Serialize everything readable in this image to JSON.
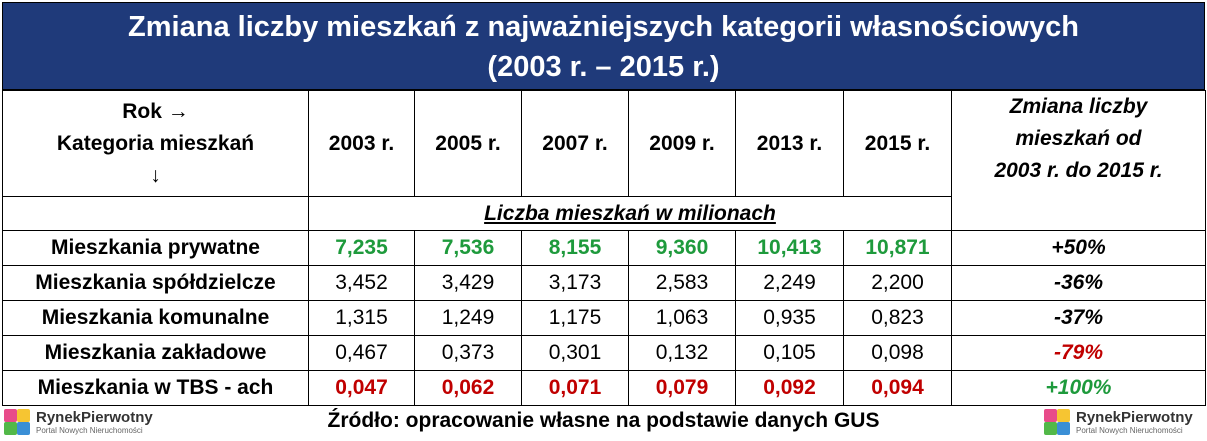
{
  "title": {
    "line1": "Zmiana liczby mieszkań z najważniejszych kategorii własnościowych",
    "line2": "(2003 r. – 2015 r.)"
  },
  "header": {
    "corner_line1": "Rok →",
    "corner_line2": "Kategoria mieszkań",
    "corner_line3": "↓",
    "years": [
      "2003 r.",
      "2005 r.",
      "2007 r.",
      "2009 r.",
      "2013 r.",
      "2015 r."
    ],
    "change_line1": "Zmiana liczby",
    "change_line2": "mieszkań od",
    "change_line3": "2003 r. do 2015 r."
  },
  "unit_label": "Liczba mieszkań w milionach",
  "rows": [
    {
      "category": "Mieszkania prywatne",
      "values": [
        "7,235",
        "7,536",
        "8,155",
        "9,360",
        "10,413",
        "10,871"
      ],
      "change": "+50%"
    },
    {
      "category": "Mieszkania spółdzielcze",
      "values": [
        "3,452",
        "3,429",
        "3,173",
        "2,583",
        "2,249",
        "2,200"
      ],
      "change": "-36%"
    },
    {
      "category": "Mieszkania komunalne",
      "values": [
        "1,315",
        "1,249",
        "1,175",
        "1,063",
        "0,935",
        "0,823"
      ],
      "change": "-37%"
    },
    {
      "category": "Mieszkania zakładowe",
      "values": [
        "0,467",
        "0,373",
        "0,301",
        "0,132",
        "0,105",
        "0,098"
      ],
      "change": "-79%"
    },
    {
      "category": "Mieszkania w TBS - ach",
      "values": [
        "0,047",
        "0,062",
        "0,071",
        "0,079",
        "0,092",
        "0,094"
      ],
      "change": "+100%"
    }
  ],
  "source": "Źródło: opracowanie własne na podstawie danych GUS",
  "logo": {
    "brand": "RynekPierwotny",
    "tagline": "Portal Nowych Nieruchomości",
    "icon": "rynekpierwotny-cube-icon"
  },
  "colors": {
    "title_bg": "#1f3a7a",
    "increase": "#1e9a3c",
    "decrease": "#c00000"
  },
  "chart_data": {
    "type": "table",
    "title": "Zmiana liczby mieszkań z najważniejszych kategorii własnościowych (2003 r. – 2015 r.)",
    "columns": [
      "2003 r.",
      "2005 r.",
      "2007 r.",
      "2009 r.",
      "2013 r.",
      "2015 r."
    ],
    "unit": "Liczba mieszkań w milionach",
    "series": [
      {
        "name": "Mieszkania prywatne",
        "values": [
          7.235,
          7.536,
          8.155,
          9.36,
          10.413,
          10.871
        ],
        "change_pct": 50
      },
      {
        "name": "Mieszkania spółdzielcze",
        "values": [
          3.452,
          3.429,
          3.173,
          2.583,
          2.249,
          2.2
        ],
        "change_pct": -36
      },
      {
        "name": "Mieszkania komunalne",
        "values": [
          1.315,
          1.249,
          1.175,
          1.063,
          0.935,
          0.823
        ],
        "change_pct": -37
      },
      {
        "name": "Mieszkania zakładowe",
        "values": [
          0.467,
          0.373,
          0.301,
          0.132,
          0.105,
          0.098
        ],
        "change_pct": -79
      },
      {
        "name": "Mieszkania w TBS - ach",
        "values": [
          0.047,
          0.062,
          0.071,
          0.079,
          0.092,
          0.094
        ],
        "change_pct": 100
      }
    ]
  }
}
